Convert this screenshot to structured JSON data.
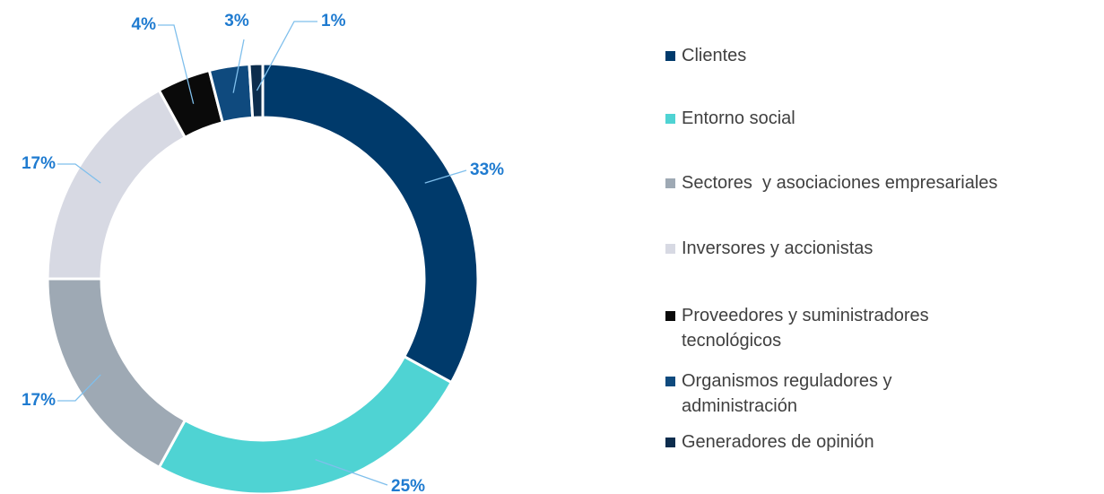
{
  "chart_data": {
    "type": "donut",
    "categories": [
      "Clientes",
      "Entorno social",
      "Sectores  y asociaciones empresariales",
      "Inversores y accionistas",
      "Proveedores y suministradores tecnológicos",
      "Organismos reguladores y administración",
      "Generadores de opinión"
    ],
    "values": [
      33,
      25,
      17,
      17,
      4,
      3,
      1
    ],
    "value_labels": [
      "33%",
      "25%",
      "17%",
      "17%",
      "4%",
      "3%",
      "1%"
    ],
    "colors": [
      "#003a6b",
      "#4fd3d3",
      "#9ea9b4",
      "#d7d9e3",
      "#0a0a0a",
      "#0f4a7e",
      "#0d2d4d"
    ],
    "legend": "right"
  }
}
